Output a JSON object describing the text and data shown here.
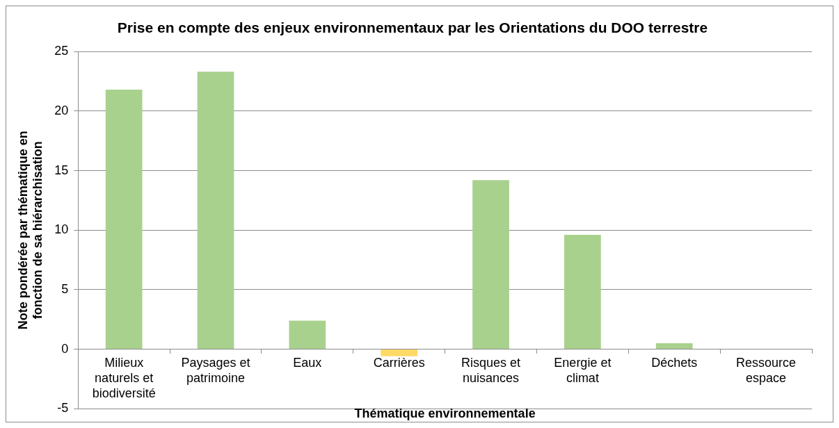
{
  "chart_data": {
    "type": "bar",
    "title": "Prise en compte des enjeux environnementaux par les Orientations du DOO terrestre",
    "xlabel": "Thématique environnementale",
    "ylabel": "Note pondérée par thématique en fonction de sa hiérarchisation",
    "categories": [
      "Milieux naturels et biodiversité",
      "Paysages et patrimoine",
      "Eaux",
      "Carrières",
      "Risques et nuisances",
      "Energie et climat",
      "Déchets",
      "Ressource espace"
    ],
    "values": [
      21.8,
      23.3,
      2.4,
      -0.6,
      14.2,
      9.6,
      0.5,
      0
    ],
    "colors": [
      "#a9d18e",
      "#a9d18e",
      "#a9d18e",
      "#ffd966",
      "#a9d18e",
      "#a9d18e",
      "#a9d18e",
      "#a9d18e"
    ],
    "ylim": [
      -5,
      25
    ],
    "yticks": [
      -5,
      0,
      5,
      10,
      15,
      20,
      25
    ],
    "grid": "y",
    "legend": false
  }
}
